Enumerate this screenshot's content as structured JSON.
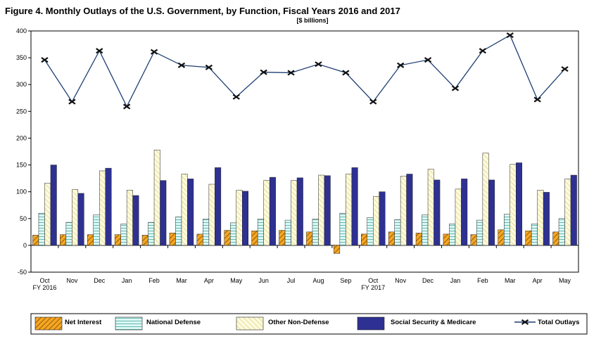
{
  "chart_data": {
    "type": "bar",
    "title": "Figure 4. Monthly Outlays of the U.S. Government, by Function,  Fiscal Years 2016 and 2017",
    "subtitle": "[$ billions]",
    "categories": [
      "Oct",
      "Nov",
      "Dec",
      "Jan",
      "Feb",
      "Mar",
      "Apr",
      "May",
      "Jun",
      "Jul",
      "Aug",
      "Sep",
      "Oct",
      "Nov",
      "Dec",
      "Jan",
      "Feb",
      "Mar",
      "Apr",
      "May"
    ],
    "category_sublabels": [
      {
        "index": 0,
        "label": "FY 2016"
      },
      {
        "index": 12,
        "label": "FY 2017"
      }
    ],
    "ylim": [
      -50,
      400
    ],
    "yticks": [
      -50,
      0,
      50,
      100,
      150,
      200,
      250,
      300,
      350,
      400
    ],
    "legend_position": "bottom",
    "series": [
      {
        "name": "Net Interest",
        "kind": "bar",
        "color": "#f5a623",
        "pattern": "diagonal-hatch",
        "values": [
          19,
          20,
          20,
          20,
          19,
          23,
          21,
          28,
          27,
          28,
          25,
          -15,
          21,
          25,
          23,
          21,
          20,
          29,
          27,
          25
        ]
      },
      {
        "name": "National Defense",
        "kind": "bar",
        "color": "#d7f6f4",
        "pattern": "horizontal-lines",
        "values": [
          60,
          43,
          57,
          40,
          43,
          53,
          49,
          42,
          49,
          47,
          49,
          60,
          52,
          48,
          57,
          40,
          47,
          58,
          40,
          50
        ]
      },
      {
        "name": "Other Non-Defense",
        "kind": "bar",
        "color": "#fbf7bd",
        "pattern": "diagonal-lines",
        "values": [
          116,
          104,
          139,
          103,
          178,
          133,
          114,
          103,
          121,
          121,
          131,
          133,
          91,
          129,
          142,
          105,
          172,
          151,
          103,
          124
        ]
      },
      {
        "name": "Social Security & Medicare",
        "kind": "bar",
        "color": "#2e3192",
        "pattern": "solid",
        "values": [
          150,
          97,
          144,
          93,
          121,
          124,
          145,
          101,
          127,
          126,
          130,
          145,
          100,
          133,
          122,
          124,
          122,
          154,
          99,
          131
        ]
      },
      {
        "name": "Total Outlays",
        "kind": "line",
        "color": "#1f3f73",
        "marker": "x",
        "values": [
          346,
          268,
          363,
          259,
          361,
          336,
          332,
          277,
          323,
          322,
          338,
          322,
          268,
          336,
          346,
          293,
          363,
          392,
          272,
          329
        ]
      }
    ]
  }
}
